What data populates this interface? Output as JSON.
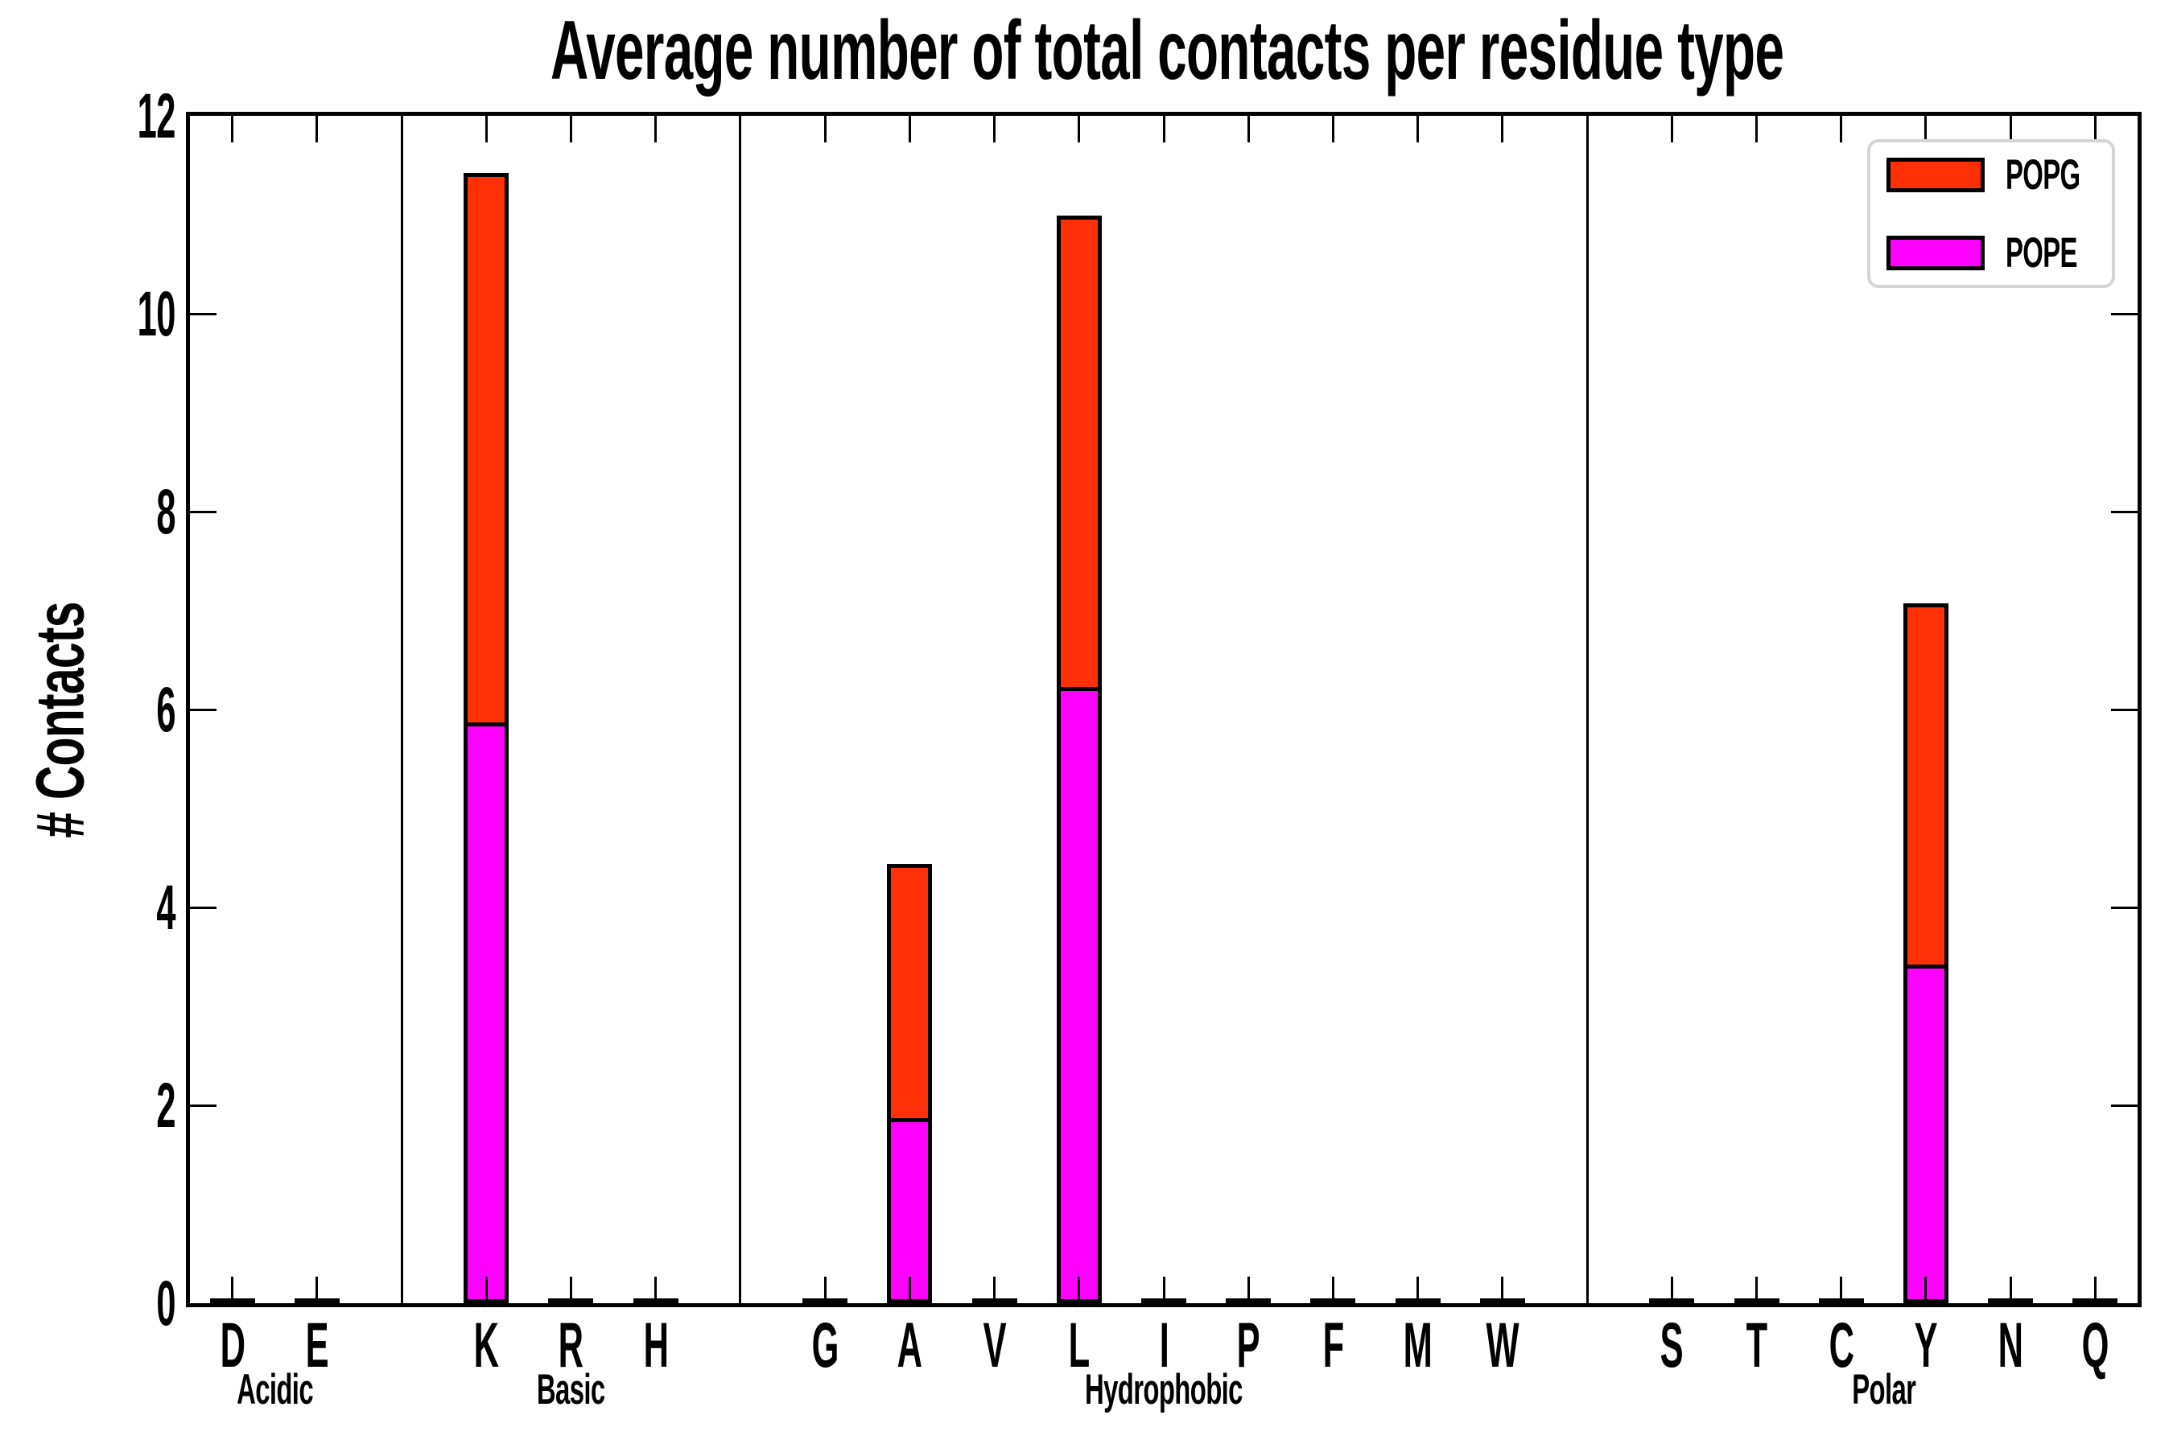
{
  "chart_data": {
    "type": "bar",
    "stacked": true,
    "title": "Average number of total contacts per residue type",
    "xlabel": "",
    "ylabel": "# Contacts",
    "ylim": [
      0,
      12
    ],
    "yticks": [
      0,
      2,
      4,
      6,
      8,
      10,
      12
    ],
    "grid": false,
    "legend_position": "upper right",
    "legend": [
      {
        "label": "POPG",
        "color": "#ff3008"
      },
      {
        "label": "POPE",
        "color": "#ff00ff"
      }
    ],
    "groups": [
      {
        "name": "Acidic",
        "residues": [
          "D",
          "E"
        ]
      },
      {
        "name": "Basic",
        "residues": [
          "K",
          "R",
          "H"
        ]
      },
      {
        "name": "Hydrophobic",
        "residues": [
          "G",
          "A",
          "V",
          "L",
          "I",
          "P",
          "F",
          "M",
          "W"
        ]
      },
      {
        "name": "Polar",
        "residues": [
          "S",
          "T",
          "C",
          "Y",
          "N",
          "Q"
        ]
      }
    ],
    "categories": [
      "D",
      "E",
      "K",
      "R",
      "H",
      "G",
      "A",
      "V",
      "L",
      "I",
      "P",
      "F",
      "M",
      "W",
      "S",
      "T",
      "C",
      "Y",
      "N",
      "Q"
    ],
    "series": [
      {
        "name": "POPE",
        "color": "#ff00ff",
        "stack_order": "bottom",
        "values": [
          0,
          0,
          5.87,
          0,
          0,
          0,
          1.87,
          0,
          6.23,
          0,
          0,
          0,
          0,
          0,
          0,
          0,
          0,
          3.42,
          0,
          0
        ]
      },
      {
        "name": "POPG",
        "color": "#ff3008",
        "stack_order": "top",
        "values": [
          0,
          0,
          5.55,
          0,
          0,
          0,
          2.57,
          0,
          4.76,
          0,
          0,
          0,
          0,
          0,
          0,
          0,
          0,
          3.65,
          0,
          0
        ]
      }
    ],
    "totals": {
      "K": 11.42,
      "A": 4.44,
      "L": 10.99,
      "Y": 7.07
    },
    "note": "Residues with ~0 contacts show only a thin black bar outline at the baseline; thin full-height vertical lines separate the four residue-type groups; ticks point inward on all four spines."
  }
}
